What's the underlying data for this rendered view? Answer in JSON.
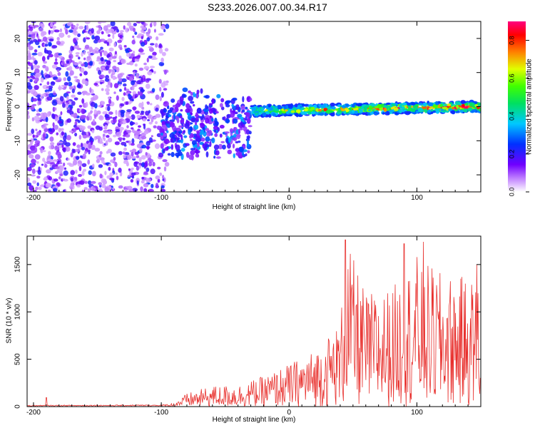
{
  "title": "S233.2026.007.00.34.R17",
  "chart_data": [
    {
      "type": "heatmap",
      "xlabel": "Height of straight line (km)",
      "ylabel": "Frequency (Hz)",
      "xlim": [
        -205,
        150
      ],
      "ylim": [
        -25,
        25
      ],
      "xticks": [
        "-200",
        "-100",
        "0",
        "100"
      ],
      "xtick_values": [
        -200,
        -100,
        0,
        100
      ],
      "yticks": [
        "-20",
        "-10",
        "0",
        "10",
        "20"
      ],
      "ytick_values": [
        -20,
        -10,
        0,
        10,
        20
      ],
      "colorbar": {
        "label": "Normalized spectral amplitude",
        "ticks": [
          "0.0",
          "0.2",
          "0.4",
          "0.6",
          "0.8"
        ],
        "tick_values": [
          0.0,
          0.2,
          0.4,
          0.6,
          0.8
        ],
        "range": [
          0.0,
          0.9
        ]
      },
      "regions": [
        {
          "name": "noise",
          "x": [
            -205,
            -95
          ],
          "freq": [
            -25,
            25
          ],
          "amplitude": [
            0.05,
            0.25
          ]
        },
        {
          "name": "scatter",
          "x": [
            -100,
            -30
          ],
          "freq": [
            -15,
            6
          ],
          "amplitude": [
            0.1,
            0.35
          ]
        },
        {
          "name": "signal-band",
          "x": [
            -30,
            150
          ],
          "freq": [
            -2.5,
            0.5
          ],
          "amplitude": [
            0.2,
            0.9
          ]
        }
      ]
    },
    {
      "type": "line",
      "xlabel": "Height of straight line (km)",
      "ylabel": "SNR (10 * v/v)",
      "xlim": [
        -205,
        150
      ],
      "ylim": [
        0,
        1800
      ],
      "xticks": [
        "-200",
        "-100",
        "0",
        "100"
      ],
      "xtick_values": [
        -200,
        -100,
        0,
        100
      ],
      "yticks": [
        "0",
        "500",
        "1000",
        "1500"
      ],
      "ytick_values": [
        0,
        500,
        1000,
        1500
      ],
      "color": "#e8302d",
      "envelope": {
        "x": [
          -205,
          -100,
          -90,
          -80,
          -60,
          -40,
          -20,
          0,
          20,
          40,
          45,
          60,
          80,
          100,
          120,
          150
        ],
        "y": [
          15,
          20,
          40,
          140,
          220,
          230,
          320,
          450,
          600,
          900,
          1750,
          1200,
          1250,
          1600,
          1400,
          1350
        ]
      },
      "peaks": [
        {
          "x": -190,
          "y": 95
        },
        {
          "x": 44,
          "y": 1760
        },
        {
          "x": 90,
          "y": 1720
        },
        {
          "x": 105,
          "y": 1740
        },
        {
          "x": 147,
          "y": 1500
        }
      ]
    }
  ]
}
